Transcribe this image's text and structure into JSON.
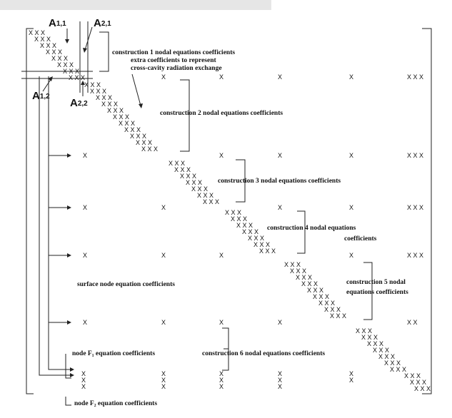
{
  "matrix_labels": {
    "a11": {
      "main": "A",
      "sub": "1,1"
    },
    "a21": {
      "main": "A",
      "sub": "2,1"
    },
    "a12": {
      "main": "A",
      "sub": "1,2"
    },
    "a22": {
      "main": "A",
      "sub": "2,2"
    }
  },
  "annotations": {
    "c1": "construction 1 nodal equations coefficients",
    "extra_1": "extra coefficients to represent",
    "extra_2": "cross-cavity radiation exchange",
    "c2": "construction 2 nodal equations coefficients",
    "c3": "construction 3 nodal equations coefficients",
    "c4_1": "construction 4 nodal equations",
    "c4_2": "coefficients",
    "c5_1": "construction 5 nodal",
    "c5_2": "equations coefficients",
    "surface": "surface node equation coefficients",
    "c6": "construction 6 nodal equations coefficients",
    "f1": "node F₁ equation coefficients",
    "f2": "node F₂ equation coefficients"
  },
  "mark": "X",
  "triple_mark": "X X X",
  "pair_mark": "X X"
}
